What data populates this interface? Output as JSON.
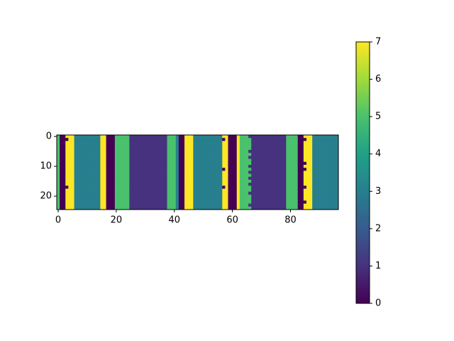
{
  "chart_data": {
    "type": "heatmap",
    "title": "",
    "xlabel": "",
    "ylabel": "",
    "rows": 25,
    "cols": 97,
    "xlim": [
      -0.5,
      96.5
    ],
    "ylim": [
      24.5,
      -0.5
    ],
    "x_ticks": [
      0,
      20,
      40,
      60,
      80
    ],
    "y_ticks": [
      0,
      10,
      20
    ],
    "colormap": "viridis",
    "vmin": 0,
    "vmax": 7,
    "colorbar": {
      "ticks": [
        0,
        1,
        2,
        3,
        4,
        5,
        6,
        7
      ]
    },
    "grid": false,
    "palette": {
      "0": "#440154",
      "1": "#46327e",
      "2": "#365c8d",
      "3": "#277f8e",
      "4": "#1fa187",
      "5": "#4ac16d",
      "6": "#a0da39",
      "7": "#fde725"
    },
    "column_runs": [
      {
        "start": 0,
        "end": 0,
        "value": 5
      },
      {
        "start": 1,
        "end": 2,
        "value": 0
      },
      {
        "start": 3,
        "end": 5,
        "value": 7
      },
      {
        "start": 6,
        "end": 14,
        "value": 3
      },
      {
        "start": 15,
        "end": 16,
        "value": 7
      },
      {
        "start": 17,
        "end": 19,
        "value": 0
      },
      {
        "start": 20,
        "end": 24,
        "value": 5
      },
      {
        "start": 25,
        "end": 37,
        "value": 1
      },
      {
        "start": 38,
        "end": 40,
        "value": 5
      },
      {
        "start": 41,
        "end": 41,
        "value": 3
      },
      {
        "start": 42,
        "end": 43,
        "value": 0
      },
      {
        "start": 44,
        "end": 46,
        "value": 7
      },
      {
        "start": 47,
        "end": 56,
        "value": 3
      },
      {
        "start": 57,
        "end": 58,
        "value": 7
      },
      {
        "start": 59,
        "end": 61,
        "value": 0
      },
      {
        "start": 62,
        "end": 62,
        "value": 7
      },
      {
        "start": 63,
        "end": 66,
        "value": 5
      },
      {
        "start": 67,
        "end": 78,
        "value": 1
      },
      {
        "start": 79,
        "end": 82,
        "value": 5
      },
      {
        "start": 83,
        "end": 84,
        "value": 0
      },
      {
        "start": 85,
        "end": 87,
        "value": 7
      },
      {
        "start": 88,
        "end": 96,
        "value": 3
      }
    ],
    "cell_overrides": [
      {
        "row": 1,
        "col": 3,
        "value": 0
      },
      {
        "row": 17,
        "col": 3,
        "value": 0
      },
      {
        "row": 1,
        "col": 57,
        "value": 0
      },
      {
        "row": 11,
        "col": 57,
        "value": 0
      },
      {
        "row": 17,
        "col": 57,
        "value": 0
      },
      {
        "row": 1,
        "col": 85,
        "value": 0
      },
      {
        "row": 9,
        "col": 85,
        "value": 0
      },
      {
        "row": 11,
        "col": 85,
        "value": 0
      },
      {
        "row": 17,
        "col": 85,
        "value": 0
      },
      {
        "row": 22,
        "col": 85,
        "value": 0
      },
      {
        "row": 0,
        "col": 66,
        "value": 1
      },
      {
        "row": 5,
        "col": 66,
        "value": 1
      },
      {
        "row": 7,
        "col": 66,
        "value": 1
      },
      {
        "row": 10,
        "col": 66,
        "value": 1
      },
      {
        "row": 12,
        "col": 66,
        "value": 1
      },
      {
        "row": 14,
        "col": 66,
        "value": 1
      },
      {
        "row": 16,
        "col": 66,
        "value": 1
      },
      {
        "row": 19,
        "col": 66,
        "value": 1
      },
      {
        "row": 23,
        "col": 66,
        "value": 1
      }
    ]
  }
}
